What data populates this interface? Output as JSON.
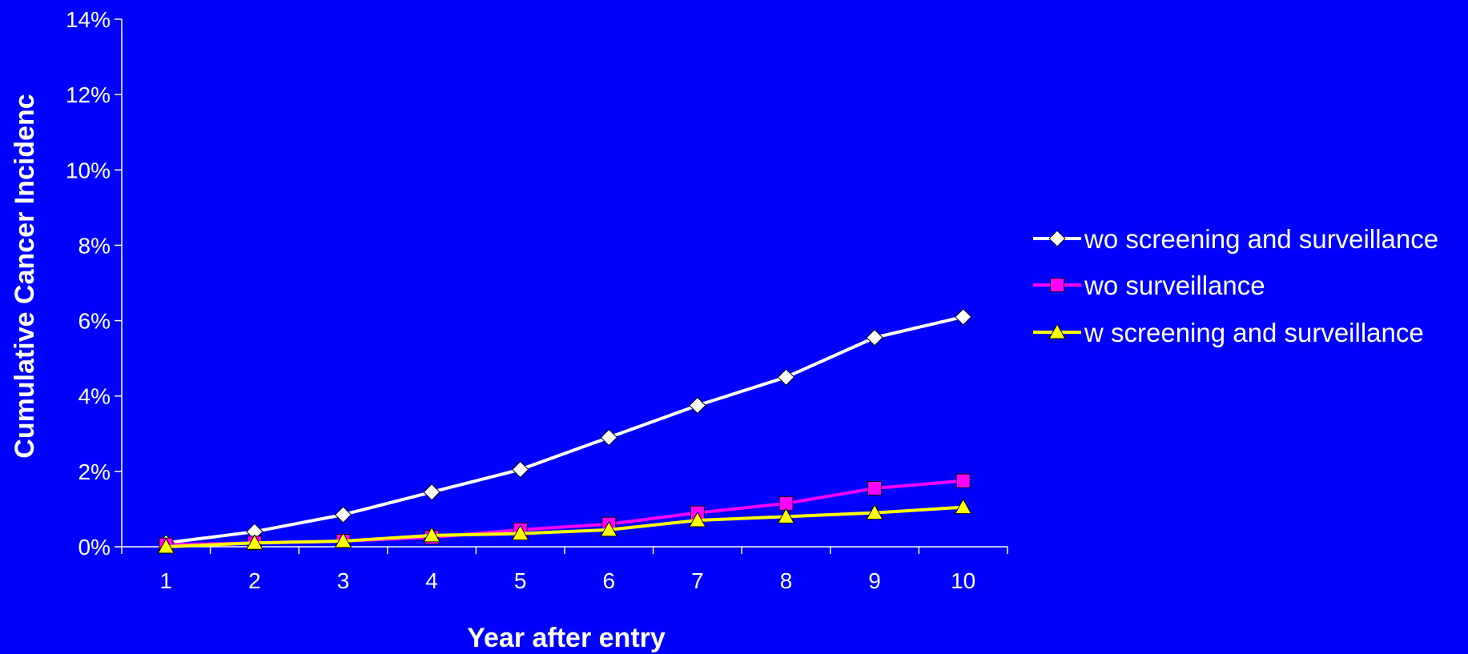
{
  "chart_data": {
    "type": "line",
    "title": "",
    "xlabel": "Year after entry",
    "ylabel": "Cumulative Cancer Incidenc",
    "categories": [
      "1",
      "2",
      "3",
      "4",
      "5",
      "6",
      "7",
      "8",
      "9",
      "10"
    ],
    "ylim": [
      0,
      14
    ],
    "yticks": [
      0,
      2,
      4,
      6,
      8,
      10,
      12,
      14
    ],
    "ytick_labels": [
      "0%",
      "2%",
      "4%",
      "6%",
      "8%",
      "10%",
      "12%",
      "14%"
    ],
    "grid": false,
    "legend_position": "right",
    "background_color": "#0000FF",
    "axis_color": "#FFFFFF",
    "series": [
      {
        "name": "wo screening and surveillance",
        "color": "#FFFFFF",
        "marker": "diamond",
        "values": [
          0.1,
          0.4,
          0.85,
          1.45,
          2.05,
          2.9,
          3.75,
          4.5,
          5.55,
          6.1
        ]
      },
      {
        "name": "wo surveillance",
        "color": "#FF00FF",
        "marker": "square",
        "values": [
          0.05,
          0.1,
          0.15,
          0.25,
          0.45,
          0.6,
          0.9,
          1.15,
          1.55,
          1.75
        ]
      },
      {
        "name": "w screening and surveillance",
        "color": "#FFFF00",
        "marker": "triangle",
        "values": [
          0.0,
          0.1,
          0.15,
          0.3,
          0.35,
          0.45,
          0.7,
          0.8,
          0.9,
          1.05
        ]
      }
    ]
  }
}
